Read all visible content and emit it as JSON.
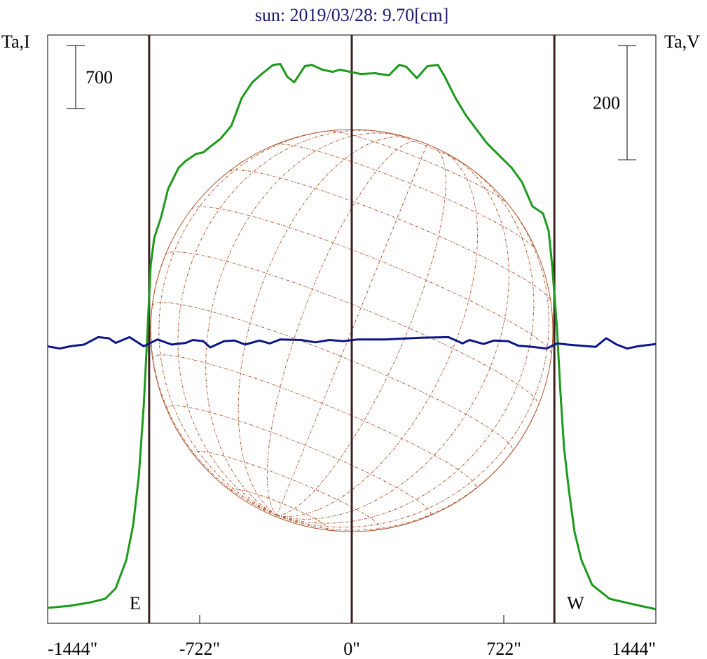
{
  "chart_data": {
    "type": "line",
    "title": "sun: 2019/03/28: 9.70[cm]",
    "y_label": "Ta,I",
    "y2_label": "Ta,V",
    "xlim": [
      -1444,
      1444
    ],
    "xticks": [
      {
        "value": -1444,
        "label": "-1444\""
      },
      {
        "value": -722,
        "label": "-722\""
      },
      {
        "value": 0,
        "label": "0\""
      },
      {
        "value": 722,
        "label": "722\""
      },
      {
        "value": 1444,
        "label": "1444\""
      }
    ],
    "ylim": [
      0,
      6530
    ],
    "y2lim": [
      -490,
      540
    ],
    "scale_bars": [
      {
        "value": 700,
        "axis": "y"
      },
      {
        "value": 200,
        "axis": "y2"
      }
    ],
    "vlines": [
      -962,
      0,
      962
    ],
    "limb_labels": [
      "E",
      "W"
    ],
    "series": [
      {
        "name": "I",
        "color": "#1c9a1c",
        "x": [
          -1444,
          -1337,
          -1238,
          -1171,
          -1121,
          -1071,
          -1038,
          -1011,
          -988,
          -971,
          -955,
          -938,
          -905,
          -872,
          -822,
          -788,
          -739,
          -705,
          -672,
          -622,
          -572,
          -522,
          -472,
          -423,
          -373,
          -339,
          -306,
          -273,
          -223,
          -190,
          -140,
          -90,
          -57,
          -7,
          43,
          110,
          176,
          226,
          260,
          309,
          359,
          409,
          442,
          492,
          542,
          592,
          642,
          709,
          759,
          808,
          858,
          908,
          935,
          952,
          975,
          991,
          1008,
          1031,
          1058,
          1091,
          1141,
          1224,
          1324,
          1444
        ],
        "values": [
          171,
          194,
          233,
          272,
          389,
          700,
          1089,
          1633,
          2411,
          3189,
          3967,
          4278,
          4511,
          4822,
          5056,
          5133,
          5211,
          5227,
          5289,
          5382,
          5522,
          5833,
          6005,
          6106,
          6199,
          6207,
          6067,
          6005,
          6184,
          6199,
          6145,
          6121,
          6145,
          6121,
          6098,
          6106,
          6082,
          6199,
          6176,
          6051,
          6184,
          6199,
          6067,
          5833,
          5639,
          5483,
          5328,
          5172,
          5056,
          4900,
          4628,
          4550,
          4356,
          3967,
          3267,
          2567,
          1944,
          1478,
          1011,
          700,
          428,
          272,
          218,
          156
        ]
      },
      {
        "name": "V",
        "color": "#0c1688",
        "axis": "y2",
        "x": [
          -1444,
          -1387,
          -1337,
          -1271,
          -1204,
          -1154,
          -1121,
          -1055,
          -988,
          -922,
          -855,
          -788,
          -755,
          -705,
          -672,
          -606,
          -556,
          -506,
          -439,
          -389,
          -339,
          -240,
          -173,
          -106,
          -40,
          27,
          160,
          326,
          459,
          526,
          559,
          626,
          675,
          742,
          792,
          858,
          925,
          975,
          1025,
          1091,
          1158,
          1208,
          1258,
          1308,
          1357,
          1444
        ],
        "values": [
          -5,
          -9,
          -5,
          -2,
          11,
          9,
          1,
          11,
          -5,
          7,
          -2,
          1,
          6,
          4,
          -7,
          4,
          5,
          -2,
          5,
          0,
          7,
          6,
          2,
          6,
          4,
          7,
          7,
          10,
          11,
          0,
          6,
          -1,
          5,
          4,
          -4,
          -6,
          -9,
          0,
          -2,
          -4,
          -6,
          9,
          -2,
          -9,
          -5,
          -1
        ]
      }
    ]
  }
}
